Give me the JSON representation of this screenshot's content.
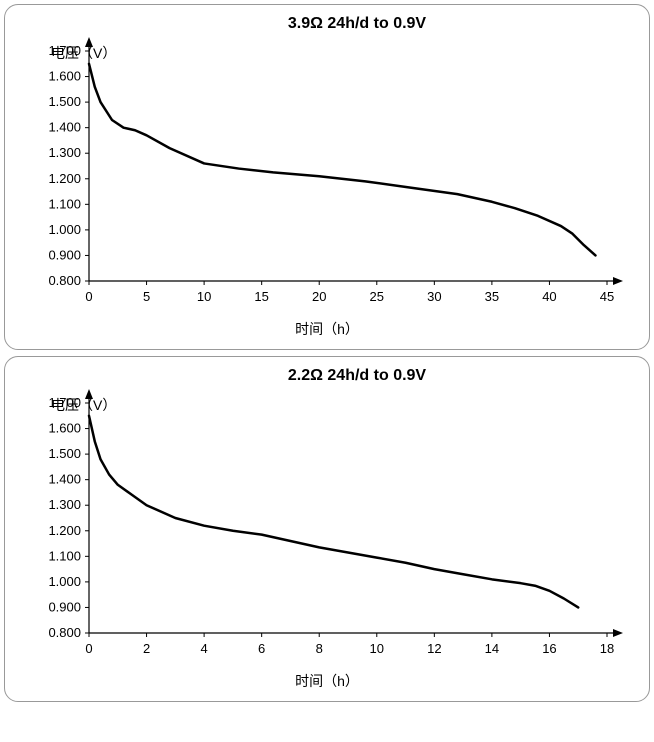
{
  "charts": [
    {
      "id": "chart1",
      "title": "3.9Ω 24h/d to 0.9V",
      "ylabel": "电压（V）",
      "xlabel": "时间（h）",
      "type": "line",
      "xlim": [
        0,
        45
      ],
      "ylim": [
        0.8,
        1.7
      ],
      "xtick_step": 5,
      "xticks": [
        0,
        5,
        10,
        15,
        20,
        25,
        30,
        35,
        40,
        45
      ],
      "yticks": [
        0.8,
        0.9,
        1.0,
        1.1,
        1.2,
        1.3,
        1.4,
        1.5,
        1.6,
        1.7
      ],
      "ytick_format": "3dec",
      "line_color": "#000000",
      "line_width": 2.5,
      "background_color": "#ffffff",
      "axis_color": "#000000",
      "data": {
        "x": [
          0,
          0.5,
          1,
          2,
          3,
          4,
          5,
          7,
          10,
          13,
          16,
          20,
          24,
          28,
          32,
          35,
          37,
          39,
          41,
          42,
          43,
          44
        ],
        "y": [
          1.65,
          1.56,
          1.5,
          1.43,
          1.4,
          1.39,
          1.37,
          1.32,
          1.26,
          1.24,
          1.225,
          1.21,
          1.19,
          1.165,
          1.14,
          1.11,
          1.085,
          1.055,
          1.015,
          0.985,
          0.94,
          0.9
        ]
      },
      "title_fontsize": 16,
      "label_fontsize": 14,
      "tick_fontsize": 13
    },
    {
      "id": "chart2",
      "title": "2.2Ω 24h/d to 0.9V",
      "ylabel": "电压（V）",
      "xlabel": "时间（h）",
      "type": "line",
      "xlim": [
        0,
        18
      ],
      "ylim": [
        0.8,
        1.7
      ],
      "xtick_step": 2,
      "xticks": [
        0,
        2,
        4,
        6,
        8,
        10,
        12,
        14,
        16,
        18
      ],
      "yticks": [
        0.8,
        0.9,
        1.0,
        1.1,
        1.2,
        1.3,
        1.4,
        1.5,
        1.6,
        1.7
      ],
      "ytick_format": "3dec",
      "line_color": "#000000",
      "line_width": 2.5,
      "background_color": "#ffffff",
      "axis_color": "#000000",
      "data": {
        "x": [
          0,
          0.2,
          0.4,
          0.7,
          1,
          1.5,
          2,
          3,
          4,
          5,
          6,
          7,
          8,
          9,
          10,
          11,
          12,
          13,
          14,
          15,
          15.5,
          16,
          16.5,
          17
        ],
        "y": [
          1.65,
          1.55,
          1.48,
          1.42,
          1.38,
          1.34,
          1.3,
          1.25,
          1.22,
          1.2,
          1.185,
          1.16,
          1.135,
          1.115,
          1.095,
          1.075,
          1.05,
          1.03,
          1.01,
          0.995,
          0.985,
          0.965,
          0.935,
          0.9
        ]
      },
      "title_fontsize": 16,
      "label_fontsize": 14,
      "tick_fontsize": 13
    }
  ]
}
